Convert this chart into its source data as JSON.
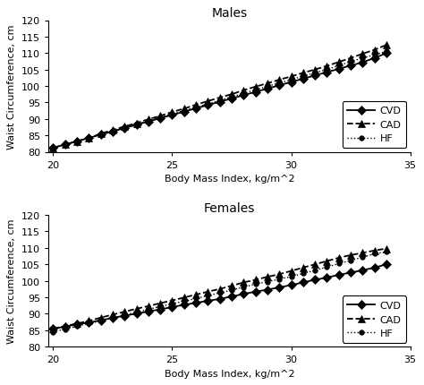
{
  "title_males": "Males",
  "title_females": "Females",
  "xlabel": "Body Mass Index, kg/m^2",
  "ylabel": "Waist Circumference, cm",
  "x_min": 20,
  "x_max": 35,
  "x_ticks": [
    20,
    25,
    30,
    35
  ],
  "y_min": 80,
  "y_max": 120,
  "y_ticks": [
    80,
    85,
    90,
    95,
    100,
    105,
    110,
    115,
    120
  ],
  "x_data": [
    20,
    20.5,
    21,
    21.5,
    22,
    22.5,
    23,
    23.5,
    24,
    24.5,
    25,
    25.5,
    26,
    26.5,
    27,
    27.5,
    28,
    28.5,
    29,
    29.5,
    30,
    30.5,
    31,
    31.5,
    32,
    32.5,
    33,
    33.5,
    34
  ],
  "males_CVD": [
    81.2,
    82.2,
    83.2,
    84.2,
    85.2,
    86.2,
    87.2,
    88.2,
    89.2,
    90.2,
    91.2,
    92.2,
    93.2,
    94.2,
    95.2,
    96.2,
    97.2,
    98.2,
    99.2,
    100.2,
    101.2,
    102.2,
    103.2,
    104.2,
    105.2,
    106.2,
    107.2,
    108.5,
    110.0
  ],
  "males_CAD": [
    81.2,
    82.2,
    83.2,
    84.2,
    85.5,
    86.6,
    87.7,
    88.7,
    89.9,
    90.9,
    92.1,
    93.1,
    94.3,
    95.4,
    96.5,
    97.5,
    98.7,
    99.8,
    100.8,
    101.9,
    102.9,
    104.0,
    105.0,
    106.1,
    107.3,
    108.5,
    109.8,
    111.0,
    112.5
  ],
  "males_HF": [
    81.2,
    82.2,
    83.2,
    84.2,
    85.2,
    86.3,
    87.4,
    88.4,
    89.4,
    90.5,
    91.5,
    92.5,
    93.5,
    94.5,
    95.6,
    96.7,
    97.8,
    98.8,
    99.9,
    100.9,
    101.9,
    103.0,
    104.0,
    105.0,
    106.2,
    107.4,
    108.5,
    109.5,
    110.5
  ],
  "females_CVD": [
    85.5,
    86.0,
    86.8,
    87.3,
    88.0,
    88.7,
    89.4,
    90.0,
    90.7,
    91.3,
    92.0,
    92.7,
    93.3,
    93.9,
    94.5,
    95.2,
    96.0,
    96.7,
    97.3,
    98.0,
    98.7,
    99.5,
    100.3,
    101.0,
    101.8,
    102.5,
    103.2,
    104.0,
    105.0
  ],
  "females_CAD": [
    85.5,
    86.2,
    87.0,
    87.8,
    88.8,
    89.7,
    90.6,
    91.5,
    92.3,
    93.2,
    94.0,
    94.9,
    95.8,
    96.7,
    97.5,
    98.5,
    99.5,
    100.3,
    101.2,
    102.0,
    103.0,
    104.0,
    105.0,
    106.0,
    107.0,
    107.8,
    108.5,
    109.2,
    109.8
  ],
  "females_HF": [
    84.5,
    85.3,
    86.2,
    87.0,
    87.8,
    88.7,
    89.6,
    90.5,
    91.3,
    92.2,
    93.0,
    93.8,
    94.6,
    95.5,
    96.3,
    97.2,
    98.1,
    99.0,
    99.7,
    100.5,
    101.3,
    102.2,
    103.2,
    104.2,
    105.2,
    106.2,
    107.2,
    108.2,
    108.8
  ],
  "color": "#000000",
  "bg_color": "#ffffff",
  "legend_labels": [
    "CVD",
    "CAD",
    "HF"
  ],
  "title_fontsize": 10,
  "label_fontsize": 8,
  "tick_fontsize": 8,
  "legend_fontsize": 8
}
